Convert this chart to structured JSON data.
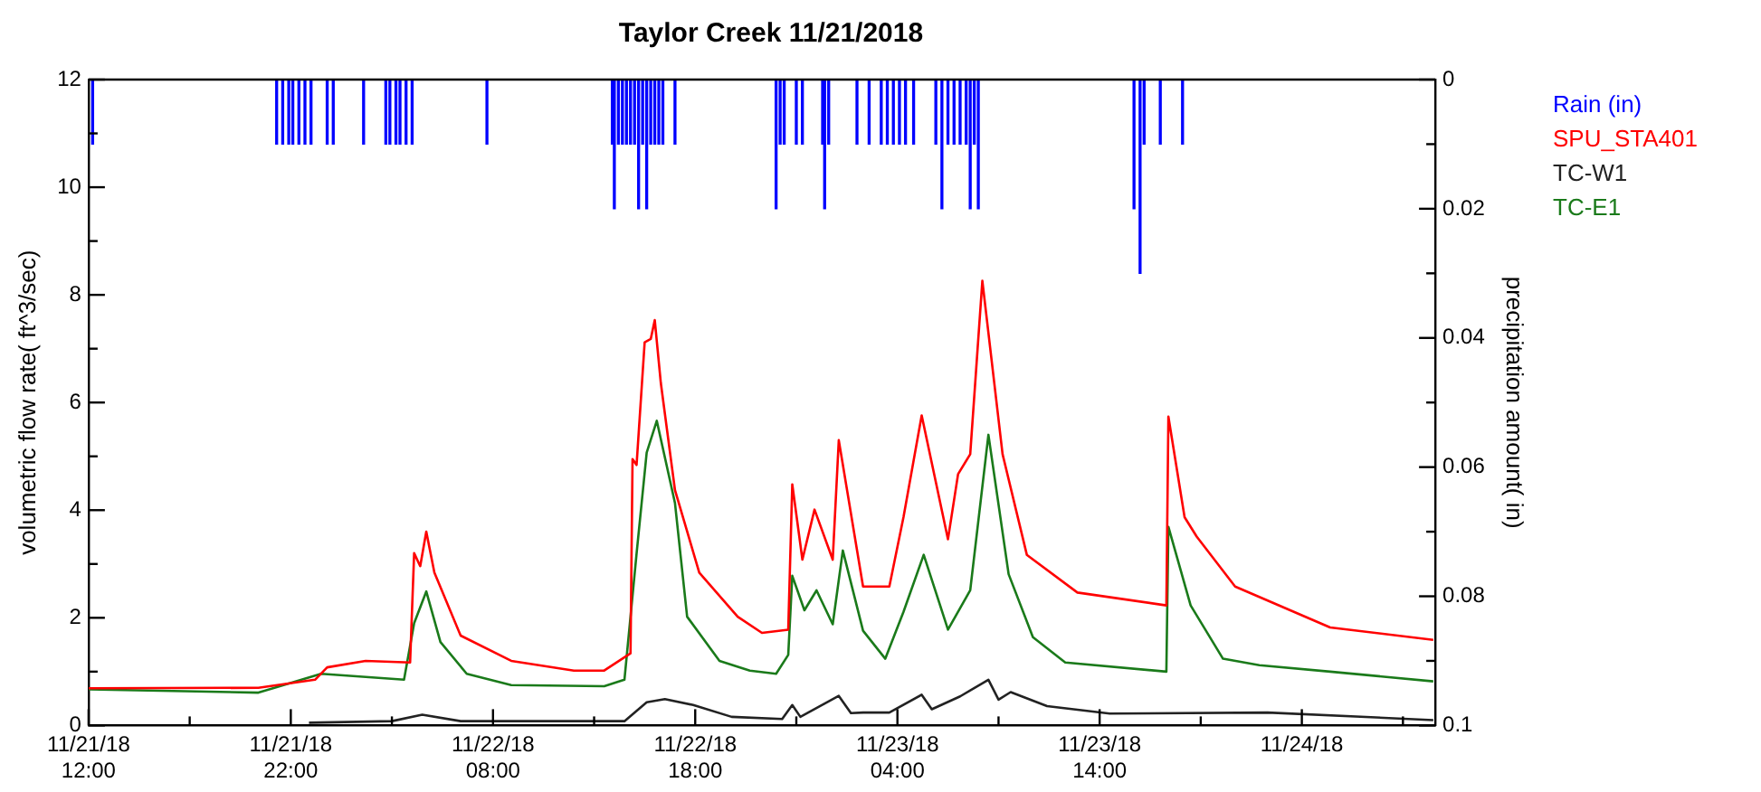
{
  "chart_data": {
    "type": "line",
    "title": "Taylor Creek 11/21/2018",
    "ylabel": "volumetric flow rate( ft^3/sec)",
    "y2label": "precipitation amount( in)",
    "xlim": [
      "2018-11-21T12:00",
      "2018-11-24T06:36"
    ],
    "xticks": [
      {
        "value": "2018-11-21T12:00",
        "label": "11/21/18\n12:00"
      },
      {
        "value": "2018-11-21T17:00",
        "label": null
      },
      {
        "value": "2018-11-21T22:00",
        "label": "11/21/18\n22:00"
      },
      {
        "value": "2018-11-22T03:00",
        "label": null
      },
      {
        "value": "2018-11-22T08:00",
        "label": "11/22/18\n08:00"
      },
      {
        "value": "2018-11-22T13:00",
        "label": null
      },
      {
        "value": "2018-11-22T18:00",
        "label": "11/22/18\n18:00"
      },
      {
        "value": "2018-11-22T23:00",
        "label": null
      },
      {
        "value": "2018-11-23T04:00",
        "label": "11/23/18\n04:00"
      },
      {
        "value": "2018-11-23T09:00",
        "label": null
      },
      {
        "value": "2018-11-23T14:00",
        "label": "11/23/18\n14:00"
      },
      {
        "value": "2018-11-23T19:00",
        "label": null
      },
      {
        "value": "2018-11-24T00:00",
        "label": "11/24/18"
      },
      {
        "value": "2018-11-24T05:00",
        "label": null
      }
    ],
    "ylim": [
      0,
      12
    ],
    "yticks": [
      0,
      {
        "value": 1,
        "label": null
      },
      2,
      {
        "value": 3,
        "label": null
      },
      4,
      {
        "value": 5,
        "label": null
      },
      6,
      {
        "value": 7,
        "label": null
      },
      8,
      {
        "value": 9,
        "label": null
      },
      10,
      {
        "value": 11,
        "label": null
      },
      12
    ],
    "y2lim": [
      0.1,
      0
    ],
    "y2ticks": [
      0,
      {
        "value": 0.01,
        "label": null
      },
      0.02,
      {
        "value": 0.03,
        "label": null
      },
      0.04,
      {
        "value": 0.05,
        "label": null
      },
      0.06,
      {
        "value": 0.07,
        "label": null
      },
      0.08,
      {
        "value": 0.09,
        "label": null
      },
      0.1
    ],
    "grid": false,
    "legend": "top right",
    "marker": "none",
    "line_style": "solid",
    "series": [
      {
        "name": "Rain (in)",
        "type": "bar",
        "axis": "y2",
        "color": "#0000ff",
        "x": [
          "2018-11-21T12:12",
          "2018-11-21T21:18",
          "2018-11-21T21:36",
          "2018-11-21T21:54",
          "2018-11-21T22:06",
          "2018-11-21T22:24",
          "2018-11-21T22:42",
          "2018-11-21T23:00",
          "2018-11-21T23:48",
          "2018-11-22T00:06",
          "2018-11-22T01:36",
          "2018-11-22T02:42",
          "2018-11-22T02:54",
          "2018-11-22T03:12",
          "2018-11-22T03:24",
          "2018-11-22T03:42",
          "2018-11-22T04:00",
          "2018-11-22T07:42",
          "2018-11-22T13:54",
          "2018-11-22T14:00",
          "2018-11-22T14:12",
          "2018-11-22T14:24",
          "2018-11-22T14:36",
          "2018-11-22T14:48",
          "2018-11-22T15:00",
          "2018-11-22T15:12",
          "2018-11-22T15:24",
          "2018-11-22T15:36",
          "2018-11-22T15:48",
          "2018-11-22T16:00",
          "2018-11-22T16:12",
          "2018-11-22T16:24",
          "2018-11-22T17:00",
          "2018-11-22T22:00",
          "2018-11-22T22:12",
          "2018-11-22T22:24",
          "2018-11-22T23:00",
          "2018-11-22T23:18",
          "2018-11-23T00:18",
          "2018-11-23T00:24",
          "2018-11-23T00:36",
          "2018-11-23T02:00",
          "2018-11-23T02:36",
          "2018-11-23T03:12",
          "2018-11-23T03:30",
          "2018-11-23T03:48",
          "2018-11-23T04:06",
          "2018-11-23T04:24",
          "2018-11-23T04:48",
          "2018-11-23T05:54",
          "2018-11-23T06:12",
          "2018-11-23T06:30",
          "2018-11-23T06:48",
          "2018-11-23T07:06",
          "2018-11-23T07:24",
          "2018-11-23T07:36",
          "2018-11-23T07:48",
          "2018-11-23T08:00",
          "2018-11-23T15:42",
          "2018-11-23T16:00",
          "2018-11-23T16:12",
          "2018-11-23T17:00",
          "2018-11-23T18:06"
        ],
        "values": [
          0.01,
          0.01,
          0.01,
          0.01,
          0.01,
          0.01,
          0.01,
          0.01,
          0.01,
          0.01,
          0.01,
          0.01,
          0.01,
          0.01,
          0.01,
          0.01,
          0.01,
          0.01,
          0.01,
          0.02,
          0.01,
          0.01,
          0.01,
          0.01,
          0.01,
          0.02,
          0.01,
          0.02,
          0.01,
          0.01,
          0.01,
          0.01,
          0.01,
          0.02,
          0.01,
          0.01,
          0.01,
          0.01,
          0.01,
          0.02,
          0.01,
          0.01,
          0.01,
          0.01,
          0.01,
          0.01,
          0.01,
          0.01,
          0.01,
          0.01,
          0.02,
          0.01,
          0.01,
          0.01,
          0.01,
          0.02,
          0.01,
          0.02,
          0.02,
          0.03,
          0.01,
          0.01,
          0.01
        ]
      },
      {
        "name": "SPU_STA401",
        "color": "#ff0000",
        "x": [
          "2018-11-21T12:00",
          "2018-11-21T20:24",
          "2018-11-21T23:12",
          "2018-11-21T23:48",
          "2018-11-22T01:42",
          "2018-11-22T03:54",
          "2018-11-22T04:06",
          "2018-11-22T04:24",
          "2018-11-22T04:42",
          "2018-11-22T05:06",
          "2018-11-22T06:24",
          "2018-11-22T08:54",
          "2018-11-22T12:00",
          "2018-11-22T13:30",
          "2018-11-22T14:48",
          "2018-11-22T14:54",
          "2018-11-22T15:06",
          "2018-11-22T15:30",
          "2018-11-22T15:48",
          "2018-11-22T16:00",
          "2018-11-22T16:18",
          "2018-11-22T17:00",
          "2018-11-22T18:12",
          "2018-11-22T20:06",
          "2018-11-22T21:18",
          "2018-11-22T22:36",
          "2018-11-22T22:48",
          "2018-11-22T23:18",
          "2018-11-22T23:54",
          "2018-11-23T00:48",
          "2018-11-23T01:06",
          "2018-11-23T02:18",
          "2018-11-23T03:36",
          "2018-11-23T04:18",
          "2018-11-23T05:12",
          "2018-11-23T06:30",
          "2018-11-23T07:00",
          "2018-11-23T07:36",
          "2018-11-23T08:12",
          "2018-11-23T09:12",
          "2018-11-23T10:24",
          "2018-11-23T12:54",
          "2018-11-23T17:18",
          "2018-11-23T17:24",
          "2018-11-23T18:12",
          "2018-11-23T18:48",
          "2018-11-23T20:42",
          "2018-11-24T01:24",
          "2018-11-24T06:30"
        ],
        "values": [
          0.69,
          0.7,
          0.85,
          1.08,
          1.2,
          1.17,
          3.2,
          2.96,
          3.6,
          2.84,
          1.67,
          1.2,
          1.02,
          1.02,
          1.34,
          4.95,
          4.84,
          7.12,
          7.18,
          7.53,
          6.36,
          4.37,
          2.84,
          2.02,
          1.72,
          1.78,
          4.48,
          3.08,
          4.01,
          3.08,
          5.3,
          2.58,
          2.58,
          3.87,
          5.76,
          3.46,
          4.67,
          5.04,
          8.26,
          5.04,
          3.17,
          2.47,
          2.23,
          5.74,
          3.87,
          3.51,
          2.58,
          1.82,
          1.59
        ]
      },
      {
        "name": "TC-W1",
        "color": "#222222",
        "x": [
          "2018-11-21T22:54",
          "2018-11-22T03:00",
          "2018-11-22T04:30",
          "2018-11-22T06:24",
          "2018-11-22T14:30",
          "2018-11-22T15:36",
          "2018-11-22T16:30",
          "2018-11-22T17:54",
          "2018-11-22T19:48",
          "2018-11-22T22:18",
          "2018-11-22T22:48",
          "2018-11-22T23:12",
          "2018-11-23T01:06",
          "2018-11-23T01:42",
          "2018-11-23T02:18",
          "2018-11-23T03:36",
          "2018-11-23T05:12",
          "2018-11-23T05:42",
          "2018-11-23T07:06",
          "2018-11-23T08:30",
          "2018-11-23T09:00",
          "2018-11-23T09:36",
          "2018-11-23T11:24",
          "2018-11-23T14:30",
          "2018-11-23T22:18",
          "2018-11-24T06:30"
        ],
        "values": [
          0.05,
          0.08,
          0.2,
          0.08,
          0.08,
          0.43,
          0.49,
          0.38,
          0.16,
          0.12,
          0.38,
          0.16,
          0.55,
          0.23,
          0.24,
          0.24,
          0.57,
          0.3,
          0.54,
          0.85,
          0.48,
          0.62,
          0.36,
          0.22,
          0.24,
          0.1
        ]
      },
      {
        "name": "TC-E1",
        "color": "#1a7a1a",
        "x": [
          "2018-11-21T12:00",
          "2018-11-21T20:24",
          "2018-11-21T23:30",
          "2018-11-22T03:36",
          "2018-11-22T04:06",
          "2018-11-22T04:42",
          "2018-11-22T05:24",
          "2018-11-22T06:42",
          "2018-11-22T08:54",
          "2018-11-22T13:30",
          "2018-11-22T14:30",
          "2018-11-22T15:06",
          "2018-11-22T15:36",
          "2018-11-22T16:06",
          "2018-11-22T17:00",
          "2018-11-22T17:36",
          "2018-11-22T19:12",
          "2018-11-22T20:42",
          "2018-11-22T22:00",
          "2018-11-22T22:36",
          "2018-11-22T22:48",
          "2018-11-22T23:24",
          "2018-11-23T00:00",
          "2018-11-23T00:48",
          "2018-11-23T01:18",
          "2018-11-23T02:18",
          "2018-11-23T03:24",
          "2018-11-23T04:18",
          "2018-11-23T05:18",
          "2018-11-23T06:30",
          "2018-11-23T07:36",
          "2018-11-23T08:30",
          "2018-11-23T09:30",
          "2018-11-23T10:42",
          "2018-11-23T12:18",
          "2018-11-23T17:18",
          "2018-11-23T17:24",
          "2018-11-23T18:30",
          "2018-11-23T20:06",
          "2018-11-23T21:54",
          "2018-11-24T01:24",
          "2018-11-24T06:30"
        ],
        "values": [
          0.67,
          0.61,
          0.96,
          0.85,
          1.9,
          2.49,
          1.55,
          0.96,
          0.75,
          0.73,
          0.85,
          3.19,
          5.07,
          5.66,
          4.13,
          2.02,
          1.2,
          1.02,
          0.96,
          1.31,
          2.78,
          2.14,
          2.51,
          1.88,
          3.25,
          1.76,
          1.24,
          2.11,
          3.17,
          1.78,
          2.51,
          5.4,
          2.81,
          1.64,
          1.17,
          1.0,
          3.69,
          2.23,
          1.24,
          1.12,
          1.0,
          0.82
        ]
      }
    ]
  }
}
